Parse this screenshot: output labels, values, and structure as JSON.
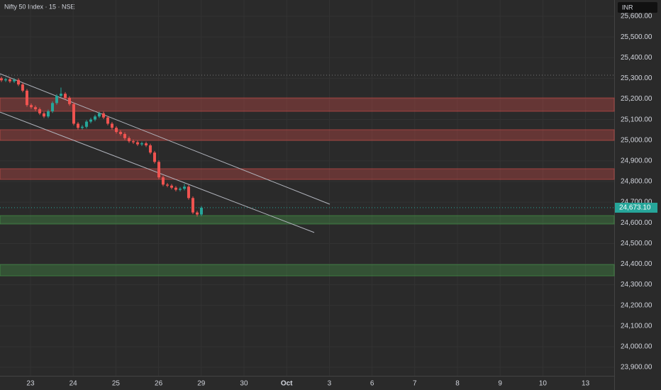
{
  "chart_data": {
    "type": "candlestick",
    "title": "Nifty 50 Index · 15 · NSE",
    "currency": "INR",
    "up_color": "#26a69a",
    "down_color": "#ef5350",
    "x": [
      -0.681,
      -0.581,
      -0.482,
      -0.382,
      -0.282,
      -0.183,
      -0.083,
      0.017,
      0.116,
      0.216,
      0.316,
      0.415,
      0.515,
      0.615,
      0.714,
      0.814,
      0.914,
      1.013,
      1.113,
      1.213,
      1.312,
      1.412,
      1.512,
      1.611,
      1.711,
      1.811,
      1.91,
      2.01,
      2.11,
      2.209,
      2.309,
      2.409,
      2.508,
      2.608,
      2.708,
      2.807,
      2.907,
      3.007,
      3.106,
      3.206,
      3.306,
      3.405,
      3.505,
      3.605,
      3.704,
      3.804,
      3.904,
      4.003
    ],
    "open": [
      25300,
      25290,
      25295,
      25285,
      25292,
      25270,
      25240,
      25170,
      25160,
      25150,
      25130,
      25115,
      25140,
      25180,
      25215,
      25225,
      25205,
      25175,
      25080,
      25060,
      25065,
      25090,
      25100,
      25115,
      25130,
      25110,
      25080,
      25060,
      25040,
      25030,
      25010,
      24995,
      24990,
      24980,
      24985,
      24975,
      24940,
      24895,
      24820,
      24785,
      24780,
      24770,
      24760,
      24765,
      24775,
      24720,
      24650,
      24640
    ],
    "high": [
      25308,
      25303,
      25303,
      25300,
      25300,
      25278,
      25248,
      25178,
      25168,
      25158,
      25138,
      25148,
      25188,
      25223,
      25255,
      25233,
      25213,
      25183,
      25088,
      25073,
      25098,
      25108,
      25123,
      25138,
      25138,
      25118,
      25088,
      25068,
      25048,
      25038,
      25018,
      25003,
      24998,
      24993,
      24993,
      24983,
      24948,
      24903,
      24828,
      24793,
      24788,
      24778,
      24773,
      24788,
      24783,
      24728,
      24658,
      24681
    ],
    "low": [
      25282,
      25282,
      25277,
      25277,
      25262,
      25232,
      25162,
      25152,
      25142,
      25122,
      25107,
      25107,
      25132,
      25172,
      25207,
      25197,
      25167,
      25072,
      25052,
      25052,
      25057,
      25082,
      25092,
      25107,
      25102,
      25072,
      25052,
      25032,
      25022,
      25002,
      24987,
      24982,
      24972,
      24972,
      24967,
      24932,
      24887,
      24812,
      24777,
      24772,
      24762,
      24752,
      24752,
      24757,
      24712,
      24642,
      24630,
      24632
    ],
    "close": [
      25290,
      25295,
      25285,
      25292,
      25270,
      25240,
      25170,
      25160,
      25150,
      25130,
      25115,
      25140,
      25180,
      25215,
      25225,
      25205,
      25175,
      25080,
      25060,
      25065,
      25090,
      25100,
      25115,
      25130,
      25110,
      25080,
      25060,
      25040,
      25030,
      25010,
      24995,
      24990,
      24980,
      24985,
      24975,
      24940,
      24895,
      24820,
      24785,
      24780,
      24770,
      24760,
      24765,
      24775,
      24720,
      24650,
      24640,
      24673.1
    ],
    "last_price": 24673.1,
    "last_price_label": "24,673.10",
    "reference_price": 25315,
    "zones": [
      {
        "from": 25205,
        "to": 25140,
        "color": "#ef5350"
      },
      {
        "from": 25051,
        "to": 24999,
        "color": "#ef5350"
      },
      {
        "from": 24862,
        "to": 24810,
        "color": "#ef5350"
      },
      {
        "from": 24635,
        "to": 24594,
        "color": "#4caf50"
      },
      {
        "from": 24398,
        "to": 24343,
        "color": "#4caf50"
      }
    ],
    "trend_lines": [
      {
        "x1": -0.714,
        "y1": 25322,
        "x2": 7.01,
        "y2": 24690
      },
      {
        "x1": -0.714,
        "y1": 25136,
        "x2": 6.645,
        "y2": 24553
      }
    ],
    "xlim": [
      -0.714,
      13.671
    ],
    "xticks": [
      {
        "value": 0,
        "label": "23"
      },
      {
        "value": 1,
        "label": "24"
      },
      {
        "value": 2,
        "label": "25"
      },
      {
        "value": 3,
        "label": "26"
      },
      {
        "value": 4,
        "label": "29"
      },
      {
        "value": 5,
        "label": "30"
      },
      {
        "value": 6,
        "label": "Oct"
      },
      {
        "value": 7,
        "label": "3"
      },
      {
        "value": 8,
        "label": "6"
      },
      {
        "value": 9,
        "label": "7"
      },
      {
        "value": 10,
        "label": "8"
      },
      {
        "value": 11,
        "label": "9"
      },
      {
        "value": 12,
        "label": "10"
      },
      {
        "value": 13,
        "label": "13"
      }
    ],
    "ylim": [
      23859,
      25679
    ],
    "yticks": [
      {
        "value": 25600,
        "label": "25,600.00"
      },
      {
        "value": 25500,
        "label": "25,500.00"
      },
      {
        "value": 25400,
        "label": "25,400.00"
      },
      {
        "value": 25300,
        "label": "25,300.00"
      },
      {
        "value": 25200,
        "label": "25,200.00"
      },
      {
        "value": 25100,
        "label": "25,100.00"
      },
      {
        "value": 25000,
        "label": "25,000.00"
      },
      {
        "value": 24900,
        "label": "24,900.00"
      },
      {
        "value": 24800,
        "label": "24,800.00"
      },
      {
        "value": 24700,
        "label": "24,700.00"
      },
      {
        "value": 24600,
        "label": "24,600.00"
      },
      {
        "value": 24500,
        "label": "24,500.00"
      },
      {
        "value": 24400,
        "label": "24,400.00"
      },
      {
        "value": 24300,
        "label": "24,300.00"
      },
      {
        "value": 24200,
        "label": "24,200.00"
      },
      {
        "value": 24100,
        "label": "24,100.00"
      },
      {
        "value": 24000,
        "label": "24,000.00"
      },
      {
        "value": 23900,
        "label": "23,900.00"
      }
    ],
    "grid": true
  }
}
